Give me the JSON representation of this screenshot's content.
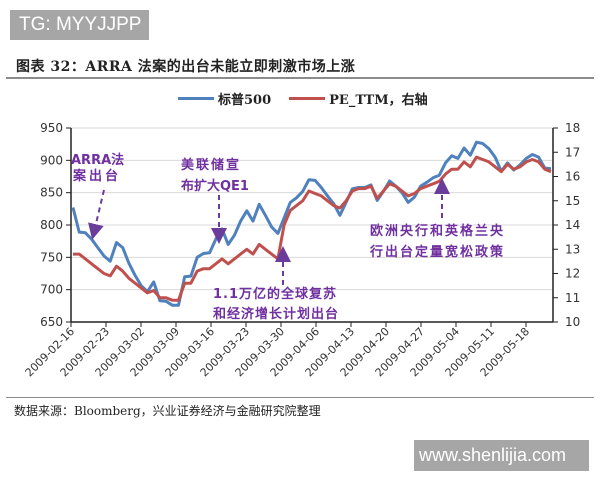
{
  "watermarks": {
    "top": "TG: MYYJJPP",
    "bottom": "www.shenlijia.com"
  },
  "figure": {
    "title": "图表 32：ARRA 法案的出台未能立即刺激市场上涨",
    "source": "数据来源：Bloomberg，兴业证券经济与金融研究院整理"
  },
  "legend": [
    {
      "label": "标普500",
      "color": "#4f81bd"
    },
    {
      "label": "PE_TTM，右轴",
      "color": "#c0504d"
    }
  ],
  "annotations": [
    {
      "id": "arra",
      "lines": [
        "ARRA法",
        "案出台"
      ]
    },
    {
      "id": "qe1",
      "lines": [
        "美联储宣",
        "布扩大QE1"
      ]
    },
    {
      "id": "stimulus",
      "lines": [
        "1.1万亿的全球复苏",
        "和经济增长计划出台"
      ]
    },
    {
      "id": "ecb",
      "lines": [
        "欧洲央行和英格兰央",
        "行出台定量宽松政策"
      ]
    }
  ],
  "chart_data": {
    "type": "line",
    "title": "图表 32：ARRA 法案的出台未能立即刺激市场上涨",
    "xlabel": "",
    "ylabel": "",
    "y2label": "",
    "ylim": [
      650,
      950
    ],
    "y2lim": [
      10,
      18
    ],
    "yticks": [
      650,
      700,
      750,
      800,
      850,
      900,
      950
    ],
    "y2ticks": [
      10,
      11,
      12,
      13,
      14,
      15,
      16,
      17,
      18
    ],
    "xticks": [
      "2009-02-16",
      "2009-02-23",
      "2009-03-02",
      "2009-03-09",
      "2009-03-16",
      "2009-03-23",
      "2009-03-30",
      "2009-04-06",
      "2009-04-13",
      "2009-04-20",
      "2009-04-27",
      "2009-05-04",
      "2009-05-11",
      "2009-05-18"
    ],
    "grid": "horizontal",
    "legend_position": "top",
    "series": [
      {
        "name": "标普500",
        "axis": "left",
        "color": "#4f81bd",
        "values": [
          827,
          789,
          788,
          778,
          765,
          752,
          744,
          773,
          765,
          741,
          722,
          706,
          697,
          712,
          683,
          682,
          676,
          676,
          720,
          721,
          750,
          756,
          757,
          778,
          794,
          770,
          784,
          806,
          822,
          806,
          832,
          815,
          797,
          787,
          811,
          835,
          842,
          852,
          870,
          869,
          858,
          845,
          833,
          815,
          835,
          856,
          858,
          858,
          862,
          838,
          852,
          868,
          860,
          850,
          835,
          843,
          860,
          866,
          873,
          877,
          896,
          907,
          903,
          919,
          908,
          928,
          926,
          918,
          905,
          883,
          896,
          885,
          893,
          903,
          909,
          905,
          888,
          887
        ]
      },
      {
        "name": "PE_TTM，右轴",
        "axis": "right",
        "color": "#c0504d",
        "values": [
          12.8,
          12.8,
          12.6,
          12.4,
          12.2,
          12.0,
          11.9,
          12.3,
          12.1,
          11.8,
          11.6,
          11.4,
          11.2,
          11.3,
          11.0,
          11.0,
          10.9,
          10.9,
          11.6,
          11.6,
          12.1,
          12.2,
          12.2,
          12.4,
          12.6,
          12.4,
          12.6,
          12.8,
          13.0,
          12.8,
          13.2,
          13.0,
          12.8,
          12.6,
          14.0,
          14.6,
          14.8,
          15.0,
          15.4,
          15.3,
          15.2,
          15.0,
          14.8,
          14.7,
          15.0,
          15.4,
          15.5,
          15.5,
          15.6,
          15.1,
          15.4,
          15.7,
          15.6,
          15.4,
          15.2,
          15.3,
          15.5,
          15.6,
          15.7,
          15.8,
          16.1,
          16.3,
          16.3,
          16.6,
          16.4,
          16.8,
          16.7,
          16.6,
          16.4,
          16.2,
          16.5,
          16.3,
          16.4,
          16.6,
          16.7,
          16.6,
          16.3,
          16.2
        ]
      }
    ]
  }
}
